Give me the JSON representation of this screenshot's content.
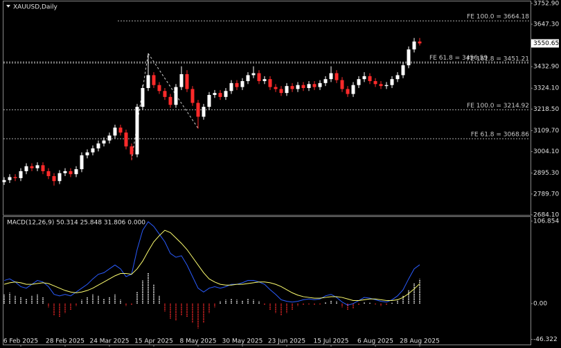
{
  "chart_data": [
    {
      "type": "candlestick",
      "title": "XAUUSD,Daily",
      "categories": [
        null,
        null,
        null,
        "6 Feb 2025",
        null,
        null,
        null,
        null,
        null,
        null,
        null,
        "28 Feb 2025",
        null,
        null,
        null,
        null,
        null,
        null,
        null,
        "24 Mar 2025",
        null,
        null,
        null,
        null,
        null,
        null,
        null,
        "15 Apr 2025",
        null,
        null,
        null,
        null,
        null,
        null,
        null,
        "8 May 2025",
        null,
        null,
        null,
        null,
        null,
        null,
        null,
        "30 May 2025",
        null,
        null,
        null,
        null,
        null,
        null,
        null,
        "23 Jun 2025",
        null,
        null,
        null,
        null,
        null,
        null,
        null,
        "15 Jul 2025",
        null,
        null,
        null,
        null,
        null,
        null,
        null,
        "6 Aug 2025",
        null,
        null,
        null,
        null,
        null,
        null,
        null,
        "28 Aug 2025"
      ],
      "open": [
        2850,
        2860,
        2875,
        2870,
        2905,
        2930,
        2920,
        2935,
        2905,
        2880,
        2855,
        2895,
        2905,
        2890,
        2915,
        2985,
        3000,
        3020,
        3045,
        3060,
        3085,
        3125,
        3100,
        3030,
        2990,
        3230,
        3325,
        3390,
        3340,
        3310,
        3280,
        3240,
        3330,
        3395,
        3320,
        3250,
        3180,
        3230,
        3290,
        3300,
        3280,
        3310,
        3350,
        3330,
        3360,
        3390,
        3400,
        3360,
        3370,
        3330,
        3320,
        3300,
        3335,
        3320,
        3340,
        3325,
        3345,
        3330,
        3350,
        3370,
        3400,
        3365,
        3320,
        3295,
        3340,
        3370,
        3385,
        3360,
        3345,
        3335,
        3340,
        3370,
        3390,
        3440,
        3520,
        3560
      ],
      "high": [
        2875,
        2890,
        2890,
        2920,
        2945,
        2945,
        2950,
        2950,
        2920,
        2895,
        2910,
        2920,
        2920,
        2930,
        3000,
        3015,
        3035,
        3060,
        3075,
        3100,
        3140,
        3140,
        3115,
        3045,
        3245,
        3340,
        3500,
        3405,
        3355,
        3325,
        3295,
        3345,
        3435,
        3415,
        3335,
        3265,
        3245,
        3305,
        3315,
        3315,
        3325,
        3365,
        3365,
        3375,
        3405,
        3435,
        3415,
        3385,
        3385,
        3345,
        3335,
        3350,
        3350,
        3355,
        3355,
        3360,
        3360,
        3365,
        3385,
        3435,
        3415,
        3380,
        3335,
        3355,
        3385,
        3405,
        3400,
        3375,
        3360,
        3355,
        3385,
        3405,
        3455,
        3535,
        3578,
        3578
      ],
      "low": [
        2835,
        2845,
        2855,
        2855,
        2890,
        2905,
        2905,
        2890,
        2865,
        2832,
        2840,
        2880,
        2875,
        2875,
        2900,
        2970,
        2985,
        3005,
        3030,
        3045,
        3070,
        3085,
        3015,
        2960,
        2975,
        3215,
        3310,
        3325,
        3295,
        3265,
        3225,
        3225,
        3315,
        3305,
        3235,
        3120,
        3165,
        3215,
        3275,
        3265,
        3265,
        3295,
        3315,
        3315,
        3345,
        3375,
        3345,
        3345,
        3315,
        3305,
        3285,
        3285,
        3305,
        3305,
        3310,
        3310,
        3315,
        3315,
        3335,
        3355,
        3350,
        3305,
        3280,
        3280,
        3325,
        3355,
        3345,
        3330,
        3320,
        3320,
        3325,
        3355,
        3375,
        3425,
        3505,
        3540
      ],
      "close": [
        2860,
        2875,
        2870,
        2905,
        2930,
        2920,
        2935,
        2905,
        2880,
        2855,
        2895,
        2905,
        2890,
        2915,
        2985,
        3000,
        3020,
        3045,
        3060,
        3085,
        3125,
        3100,
        3030,
        2990,
        3230,
        3325,
        3390,
        3340,
        3310,
        3280,
        3240,
        3330,
        3395,
        3320,
        3250,
        3180,
        3230,
        3290,
        3300,
        3280,
        3310,
        3350,
        3330,
        3360,
        3390,
        3400,
        3360,
        3370,
        3330,
        3320,
        3300,
        3335,
        3320,
        3340,
        3325,
        3345,
        3330,
        3350,
        3370,
        3400,
        3365,
        3320,
        3295,
        3340,
        3370,
        3385,
        3360,
        3345,
        3335,
        3340,
        3370,
        3390,
        3440,
        3520,
        3560,
        3550.65
      ],
      "up_color": "#ffffff",
      "down_color": "#ff2a2a",
      "ylim": [
        2684.1,
        3762.7
      ],
      "yticks": [
        {
          "value": 3752.9,
          "label": "3752.90"
        },
        {
          "value": 3647.3,
          "label": "3647.30"
        },
        {
          "value": 3432.9,
          "label": "3432.90"
        },
        {
          "value": 3324.1,
          "label": "3324.10"
        },
        {
          "value": 3218.5,
          "label": "3218.50"
        },
        {
          "value": 3109.7,
          "label": "3109.70"
        },
        {
          "value": 3004.1,
          "label": "3004.10"
        },
        {
          "value": 2895.3,
          "label": "2895.30"
        },
        {
          "value": 2789.7,
          "label": "2789.70"
        },
        {
          "value": 2684.1,
          "label": "2684.10"
        }
      ],
      "last_price": 3550.65,
      "annotations": [
        {
          "text": "FE 100.0 = 3664.18",
          "value": 3664.18
        },
        {
          "text": "FE 61.8 = 3456.59",
          "value": 3456.59
        },
        {
          "text": "FE 161.8 = 3451.21",
          "value": 3451.21
        },
        {
          "text": "FE 100.0 = 3214.92",
          "value": 3214.92
        },
        {
          "text": "FE 61.8 = 3068.86",
          "value": 3068.86
        }
      ]
    },
    {
      "type": "macd",
      "title": "MACD(12,26,9) 50.314 25.848 31.806 0.000",
      "ylim": [
        -53,
        112.2
      ],
      "yticks": [
        106.854,
        {
          "value": 0,
          "label": "0.00"
        },
        -46.322
      ],
      "series": [
        {
          "kind": "histogram",
          "color": "#ffffff",
          "negative_color": "#ff2a2a",
          "values": [
            12,
            14,
            10,
            8,
            6,
            10,
            12,
            8,
            -5,
            -15,
            -18,
            -12,
            -8,
            -3,
            5,
            8,
            12,
            10,
            6,
            8,
            12,
            5,
            -3,
            -2,
            15,
            30,
            40,
            25,
            10,
            -10,
            -20,
            -22,
            -15,
            -18,
            -25,
            -32,
            -25,
            -12,
            -5,
            3,
            5,
            6,
            5,
            4,
            6,
            5,
            3,
            -2,
            -8,
            -12,
            -15,
            -12,
            -8,
            -3,
            -2,
            -1,
            -2,
            -1,
            2,
            4,
            3,
            -5,
            -8,
            -6,
            -2,
            2,
            1,
            -1,
            -3,
            -2,
            1,
            5,
            10,
            18,
            26,
            31.806
          ]
        },
        {
          "kind": "line",
          "color": "#2a5cff",
          "values": [
            30,
            32,
            28,
            22,
            20,
            25,
            30,
            28,
            22,
            12,
            10,
            12,
            10,
            15,
            20,
            25,
            32,
            38,
            40,
            45,
            50,
            45,
            35,
            38,
            70,
            95,
            106,
            100,
            90,
            80,
            65,
            60,
            62,
            50,
            35,
            20,
            15,
            20,
            22,
            20,
            22,
            25,
            25,
            27,
            30,
            30,
            28,
            25,
            18,
            12,
            5,
            3,
            2,
            3,
            5,
            6,
            5,
            6,
            10,
            12,
            8,
            2,
            -2,
            0,
            4,
            8,
            7,
            5,
            3,
            2,
            5,
            10,
            18,
            32,
            45,
            50.314
          ]
        },
        {
          "kind": "line",
          "color": "#ffff70",
          "values": [
            25,
            27,
            28,
            27,
            25,
            25,
            26,
            27,
            26,
            23,
            20,
            17,
            15,
            14,
            15,
            17,
            20,
            24,
            28,
            32,
            36,
            39,
            39,
            38,
            45,
            55,
            68,
            80,
            88,
            95,
            92,
            85,
            78,
            70,
            60,
            50,
            40,
            32,
            28,
            25,
            24,
            24,
            25,
            25,
            26,
            27,
            28,
            28,
            27,
            25,
            22,
            18,
            14,
            11,
            9,
            8,
            7,
            7,
            8,
            9,
            9,
            8,
            6,
            4,
            4,
            5,
            6,
            6,
            5,
            4,
            4,
            5,
            8,
            13,
            19,
            25.848
          ]
        }
      ]
    }
  ]
}
